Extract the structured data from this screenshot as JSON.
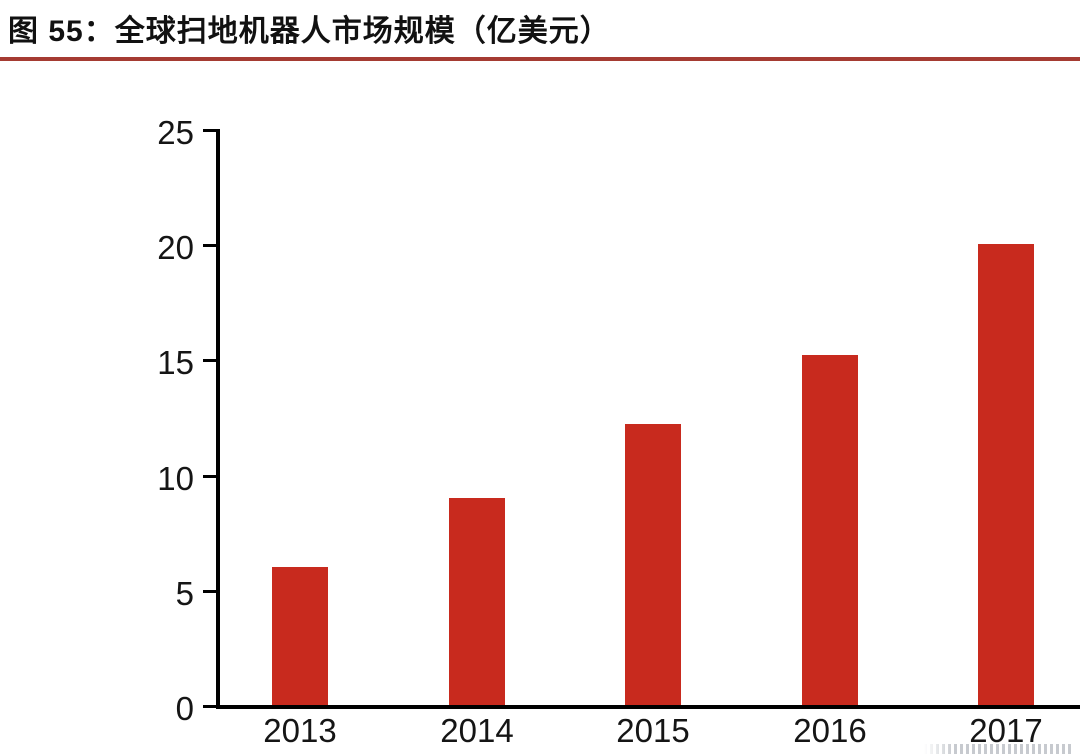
{
  "page": {
    "title": "图 55：全球扫地机器人市场规模（亿美元）"
  },
  "colors": {
    "bar": "#C82A1E",
    "title_underline": "#A53B32",
    "axis": "#000000",
    "label_text": "#151515"
  },
  "chart_data": {
    "type": "bar",
    "title": "图 55：全球扫地机器人市场规模（亿美元）",
    "categories": [
      "2013",
      "2014",
      "2015",
      "2016",
      "2017"
    ],
    "values": [
      6,
      9,
      12.2,
      15.2,
      20
    ],
    "unit_label": "亿美元",
    "xlabel": "",
    "ylabel": "",
    "ylim": [
      0,
      25
    ],
    "yticks": [
      0,
      5,
      10,
      15,
      20,
      25
    ],
    "grid": false,
    "legend_position": "none",
    "bar_color": "#C82A1E"
  }
}
